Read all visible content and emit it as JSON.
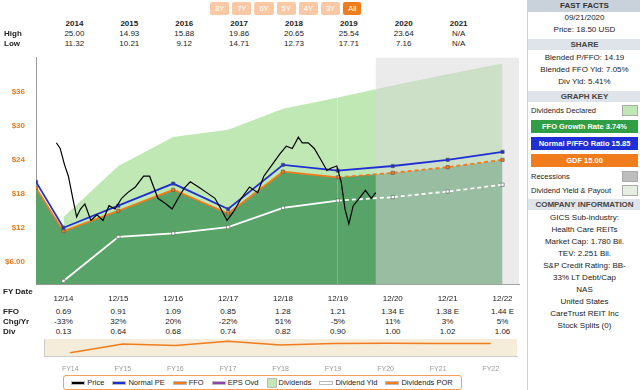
{
  "toolbar": {
    "buttons": [
      "8Y",
      "7Y",
      "6Y",
      "5Y",
      "4Y",
      "3Y",
      "All"
    ],
    "active": "All"
  },
  "price_history": {
    "years": [
      "2014",
      "2015",
      "2016",
      "2017",
      "2018",
      "2019",
      "2020",
      "2021"
    ],
    "rows": [
      {
        "label": "High",
        "values": [
          "25.00",
          "14.93",
          "15.88",
          "19.86",
          "20.65",
          "25.54",
          "23.64",
          "N/A"
        ]
      },
      {
        "label": "Low",
        "values": [
          "11.32",
          "10.21",
          "9.12",
          "14.71",
          "12.73",
          "17.71",
          "7.16",
          "N/A"
        ]
      }
    ]
  },
  "chart_data": [
    {
      "type": "line",
      "xlabel": "FY Date",
      "xlim": [
        2014.5,
        2023.3
      ],
      "xticks": [
        {
          "value": 2015,
          "label": "12/14"
        },
        {
          "value": 2016,
          "label": "12/15"
        },
        {
          "value": 2017,
          "label": "12/16"
        },
        {
          "value": 2018,
          "label": "12/17"
        },
        {
          "value": 2019,
          "label": "12/18"
        },
        {
          "value": 2020,
          "label": "12/19"
        },
        {
          "value": 2021,
          "label": "12/20"
        },
        {
          "value": 2022,
          "label": "12/21"
        },
        {
          "value": 2023,
          "label": "12/22"
        }
      ],
      "ylim": [
        2,
        42
      ],
      "yticks": [
        {
          "value": 6,
          "label": "$6.00"
        },
        {
          "value": 12,
          "label": "$12"
        },
        {
          "value": 18,
          "label": "$18"
        },
        {
          "value": 24,
          "label": "$24"
        },
        {
          "value": 30,
          "label": "$30"
        },
        {
          "value": 36,
          "label": "$36"
        }
      ],
      "grid": false,
      "legend": "bottom",
      "series": [
        {
          "name": "Price",
          "color": "#000000",
          "type": "line",
          "marker": "none",
          "line_style": "solid",
          "x": [
            2014.87,
            2014.94,
            2015.02,
            2015.09,
            2015.17,
            2015.24,
            2015.31,
            2015.39,
            2015.5,
            2015.61,
            2015.72,
            2015.83,
            2015.94,
            2016.06,
            2016.17,
            2016.31,
            2016.46,
            2016.57,
            2016.72,
            2016.87,
            2016.98,
            2017.09,
            2017.2,
            2017.31,
            2017.46,
            2017.61,
            2017.76,
            2017.87,
            2017.98,
            2018.09,
            2018.24,
            2018.39,
            2018.54,
            2018.65,
            2018.8,
            2018.94,
            2019.06,
            2019.17,
            2019.28,
            2019.35,
            2019.46,
            2019.57,
            2019.69,
            2019.8,
            2019.87,
            2019.98,
            2020.06,
            2020.13,
            2020.2,
            2020.28,
            2020.39,
            2020.5,
            2020.61,
            2020.69
          ],
          "values": [
            27.0,
            26.0,
            23.1,
            21.1,
            17.2,
            13.9,
            15.3,
            16.2,
            13.3,
            14.3,
            13.3,
            15.9,
            15.3,
            17.2,
            18.2,
            19.2,
            21.1,
            21.1,
            17.2,
            16.2,
            15.3,
            17.2,
            19.0,
            20.1,
            19.2,
            18.2,
            17.2,
            15.3,
            13.3,
            14.7,
            17.2,
            19.2,
            18.2,
            21.1,
            23.1,
            25.0,
            26.4,
            26.0,
            28.0,
            27.0,
            27.0,
            26.0,
            24.0,
            22.1,
            22.5,
            22.9,
            20.1,
            15.3,
            12.7,
            15.9,
            17.2,
            18.6,
            17.2,
            18.2
          ]
        },
        {
          "name": "Normal PE",
          "color": "#1f2fd6",
          "type": "line",
          "marker": "square",
          "line_style": "solid",
          "x": [
            2014.5,
            2015,
            2016,
            2017,
            2018,
            2019,
            2020,
            2021,
            2022,
            2023
          ],
          "values": [
            20.1,
            12.0,
            15.9,
            19.8,
            15.3,
            23.1,
            22.1,
            22.9,
            24.0,
            25.4
          ]
        },
        {
          "name": "FFO",
          "color": "#f07c1c",
          "type": "area",
          "marker": "square",
          "line_style": "dashed",
          "x": [
            2014.5,
            2015,
            2016,
            2017,
            2018,
            2019,
            2020,
            2021,
            2022,
            2023
          ],
          "values": [
            19.0,
            11.4,
            15.0,
            18.7,
            14.5,
            21.9,
            20.9,
            21.7,
            22.7,
            24.0
          ]
        },
        {
          "name": "EPS Ovd",
          "color": "#8e44ad",
          "type": "line",
          "marker": "none",
          "line_style": "solid",
          "x": [
            2015,
            2016,
            2017,
            2018,
            2019,
            2020,
            2021,
            2022,
            2023
          ],
          "values": [
            null,
            null,
            null,
            null,
            null,
            null,
            null,
            null,
            null
          ]
        },
        {
          "name": "Dividends",
          "color": "#bfe8b5",
          "type": "area",
          "marker": "none",
          "line_style": "solid",
          "x": [
            2015,
            2016,
            2017,
            2018,
            2019,
            2020,
            2021,
            2022,
            2023
          ],
          "values": [
            13.9,
            22.9,
            28.0,
            29.3,
            33.0,
            35.0,
            37.1,
            39.1,
            41.0
          ]
        },
        {
          "name": "Dividend Yld",
          "color": "#ffffff",
          "type": "line",
          "marker": "square",
          "line_style": "dashed",
          "x": [
            2015,
            2016,
            2017,
            2018,
            2019,
            2020,
            2021,
            2022,
            2023
          ],
          "values": [
            2.6,
            10.4,
            11.0,
            12.1,
            15.5,
            16.8,
            17.4,
            18.4,
            19.6
          ]
        }
      ]
    },
    {
      "type": "line",
      "categories": [
        "FY14",
        "FY15",
        "FY16",
        "FY17",
        "FY18",
        "FY19",
        "FY20",
        "FY21",
        "FY22"
      ],
      "ylim": [
        0,
        100
      ],
      "tick_labels": "x",
      "grid": false,
      "series": [
        {
          "name": "Dividends POR",
          "color": "#f07c1c",
          "values": [
            19,
            70,
            62,
            87,
            64,
            74,
            75,
            74,
            74
          ]
        }
      ]
    }
  ],
  "fundamentals": {
    "rows": [
      {
        "label": "FFO",
        "values": [
          "0.69",
          "0.91",
          "1.09",
          "0.85",
          "1.28",
          "1.21",
          "1.34 E",
          "1.38 E",
          "1.44 E"
        ]
      },
      {
        "label": "Chg/Yr",
        "values": [
          "-33%",
          "32%",
          "20%",
          "-22%",
          "51%",
          "-5%",
          "11%",
          "3%",
          "5%"
        ]
      },
      {
        "label": "Div",
        "values": [
          "0.13",
          "0.64",
          "0.68",
          "0.74",
          "0.82",
          "0.90",
          "1.00",
          "1.02",
          "1.06"
        ]
      }
    ]
  },
  "fast_facts": {
    "title": "FAST FACTS",
    "date": "09/21/2020",
    "price": "Price: 18.50 USD",
    "sections": [
      {
        "title": "SHARE",
        "lines": [
          "Blended P/FFO: 14.19",
          "Blended FFO Yld: 7.05%",
          "Div Yld: 5.41%"
        ]
      },
      {
        "title": "GRAPH KEY",
        "keys": [
          {
            "label": "Dividends Declared",
            "color": "#bfe8b5",
            "style": "swatch"
          },
          {
            "label": "FFO Growth Rate 3.74%",
            "color": "#2f9e44",
            "style": "banner"
          },
          {
            "label": "Normal P/FFO Ratio 15.85",
            "color": "#1f2fd6",
            "style": "banner"
          },
          {
            "label": "GDF 15.00",
            "color": "#f07c1c",
            "style": "banner"
          },
          {
            "label": "Recessions",
            "color": "#bdbdbd",
            "style": "swatch"
          },
          {
            "label": "Dividend Yield & Payout",
            "color": "#e6eedf",
            "style": "swatch"
          }
        ]
      },
      {
        "title": "COMPANY INFORMATION",
        "lines": [
          "GICS Sub-industry:",
          "Health Care REITs",
          "Market Cap: 1.780 Bil.",
          "TEV: 2.251 Bil.",
          "S&P Credit Rating: BB-",
          "33% LT Debt/Cap",
          "NAS",
          "United States",
          "CareTrust REIT Inc",
          "Stock Splits (0)"
        ]
      }
    ]
  }
}
